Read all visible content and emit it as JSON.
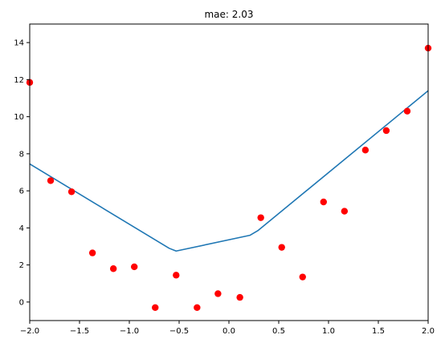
{
  "chart_data": {
    "type": "line+scatter",
    "title": "mae: 2.03",
    "xlabel": "",
    "ylabel": "",
    "xlim": [
      -2.0,
      2.0
    ],
    "ylim": [
      -1.0,
      15.0
    ],
    "x_ticks": [
      -2.0,
      -1.5,
      -1.0,
      -0.5,
      0.0,
      0.5,
      1.0,
      1.5,
      2.0
    ],
    "x_tick_labels": [
      "−2.0",
      "−1.5",
      "−1.0",
      "−0.5",
      "0.0",
      "0.5",
      "1.0",
      "1.5",
      "2.0"
    ],
    "y_ticks": [
      0,
      2,
      4,
      6,
      8,
      10,
      12,
      14
    ],
    "y_tick_labels": [
      "0",
      "2",
      "4",
      "6",
      "8",
      "10",
      "12",
      "14"
    ],
    "grid": false,
    "series": [
      {
        "kind": "line",
        "color": "#1f77b4",
        "x": [
          -2.0,
          -0.6,
          -0.53,
          0.21,
          0.29,
          2.0
        ],
        "y": [
          7.45,
          2.9,
          2.75,
          3.6,
          3.85,
          11.4
        ]
      },
      {
        "kind": "scatter",
        "color": "#ff0000",
        "x": [
          -2.0,
          -1.79,
          -1.58,
          -1.37,
          -1.16,
          -0.95,
          -0.74,
          -0.53,
          -0.32,
          -0.11,
          0.11,
          0.32,
          0.53,
          0.74,
          0.95,
          1.16,
          1.37,
          1.58,
          1.79,
          2.0
        ],
        "y": [
          11.85,
          6.55,
          5.95,
          2.65,
          1.8,
          1.9,
          -0.3,
          1.45,
          -0.3,
          0.45,
          0.25,
          4.55,
          2.95,
          1.35,
          5.4,
          4.9,
          8.2,
          9.25,
          10.3,
          13.7
        ]
      }
    ]
  }
}
